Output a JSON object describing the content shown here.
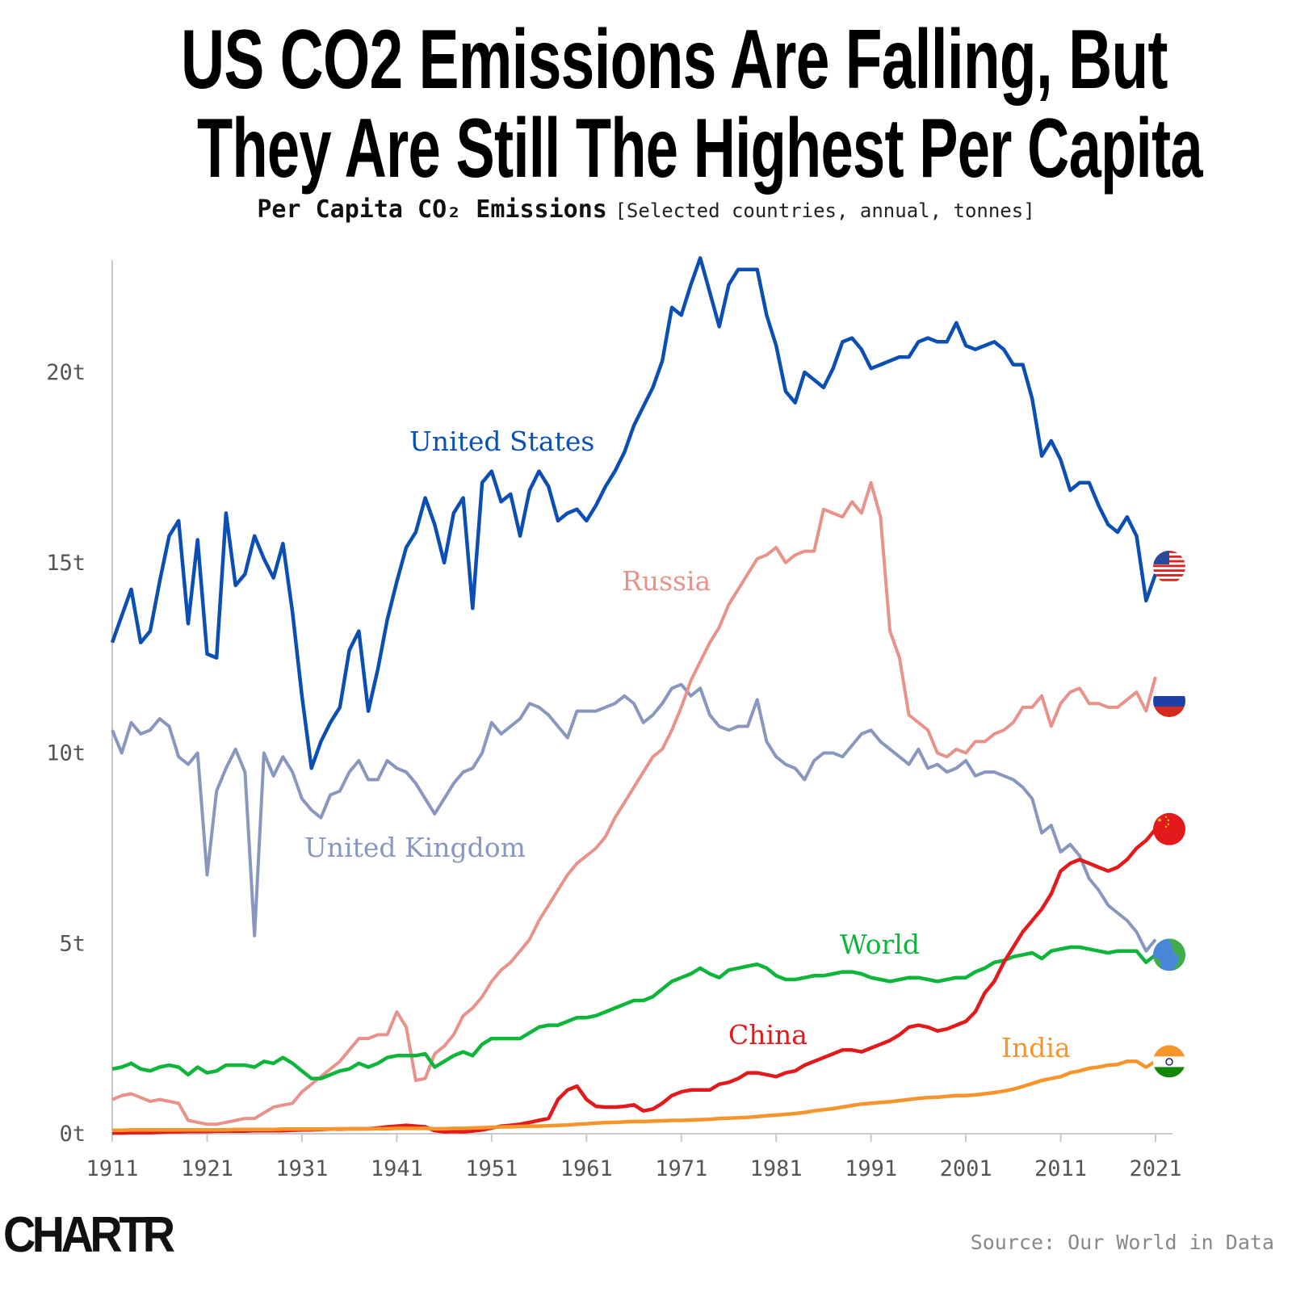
{
  "title_lines": [
    "US CO2 Emissions Are Falling, But",
    "They Are Still The Highest Per Capita"
  ],
  "subtitle": {
    "bold": "Per Capita CO₂ Emissions",
    "note": "[Selected countries, annual, tonnes]"
  },
  "logo": "CHARTR",
  "source": "Source: Our World in Data",
  "chart_data": {
    "type": "line",
    "title": "Per Capita CO₂ Emissions",
    "xlabel": "",
    "ylabel": "",
    "x_start": 1911,
    "x_end": 2021,
    "xlim": [
      1911,
      2022
    ],
    "ylim": [
      0,
      23
    ],
    "x_ticks": [
      1911,
      1921,
      1931,
      1941,
      1951,
      1961,
      1971,
      1981,
      1991,
      2001,
      2011,
      2021
    ],
    "y_ticks": [
      0,
      5,
      10,
      15,
      20
    ],
    "y_tick_labels": [
      "0t",
      "5t",
      "10t",
      "15t",
      "20t"
    ],
    "grid": false,
    "legend": "inline labels and flag markers at line ends",
    "series": [
      {
        "name": "United States",
        "color": "#0b4fb5",
        "flag": "us-flag",
        "values": [
          12.9,
          13.6,
          14.3,
          12.9,
          13.2,
          14.5,
          15.7,
          16.1,
          13.4,
          15.6,
          12.6,
          12.5,
          16.3,
          14.4,
          14.7,
          15.7,
          15.1,
          14.6,
          15.5,
          13.7,
          11.5,
          9.6,
          10.3,
          10.8,
          11.2,
          12.7,
          13.2,
          11.1,
          12.2,
          13.5,
          14.5,
          15.4,
          15.8,
          16.7,
          16.0,
          15.0,
          16.3,
          16.7,
          13.8,
          17.1,
          17.4,
          16.6,
          16.8,
          15.7,
          16.9,
          17.4,
          17.0,
          16.1,
          16.3,
          16.4,
          16.1,
          16.5,
          17.0,
          17.4,
          17.9,
          18.6,
          19.1,
          19.6,
          20.3,
          21.7,
          21.5,
          22.3,
          23.0,
          22.1,
          21.2,
          22.3,
          22.7,
          22.7,
          22.7,
          21.5,
          20.7,
          19.5,
          19.2,
          20.0,
          19.8,
          19.6,
          20.1,
          20.8,
          20.9,
          20.6,
          20.1,
          20.2,
          20.3,
          20.4,
          20.4,
          20.8,
          20.9,
          20.8,
          20.8,
          21.3,
          20.7,
          20.6,
          20.7,
          20.8,
          20.6,
          20.2,
          20.2,
          19.3,
          17.8,
          18.2,
          17.7,
          16.9,
          17.1,
          17.1,
          16.5,
          16.0,
          15.8,
          16.2,
          15.7,
          14.0,
          14.7
        ]
      },
      {
        "name": "Russia",
        "color": "#e8928a",
        "flag": "russia-flag",
        "values": [
          0.9,
          1.0,
          1.05,
          0.95,
          0.85,
          0.9,
          0.85,
          0.8,
          0.35,
          0.3,
          0.25,
          0.25,
          0.3,
          0.35,
          0.4,
          0.4,
          0.55,
          0.7,
          0.75,
          0.8,
          1.1,
          1.3,
          1.5,
          1.7,
          1.9,
          2.2,
          2.5,
          2.5,
          2.6,
          2.6,
          3.2,
          2.8,
          1.4,
          1.45,
          2.1,
          2.3,
          2.6,
          3.1,
          3.3,
          3.6,
          4.0,
          4.3,
          4.5,
          4.8,
          5.1,
          5.6,
          6.0,
          6.4,
          6.8,
          7.1,
          7.3,
          7.5,
          7.8,
          8.3,
          8.7,
          9.1,
          9.5,
          9.9,
          10.1,
          10.6,
          11.2,
          11.9,
          12.4,
          12.9,
          13.3,
          13.9,
          14.3,
          14.7,
          15.1,
          15.2,
          15.4,
          15.0,
          15.2,
          15.3,
          15.3,
          16.4,
          16.3,
          16.2,
          16.6,
          16.3,
          17.1,
          16.2,
          13.2,
          12.5,
          11.0,
          10.8,
          10.6,
          10.0,
          9.9,
          10.1,
          10.0,
          10.3,
          10.3,
          10.5,
          10.6,
          10.8,
          11.2,
          11.2,
          11.5,
          10.7,
          11.3,
          11.6,
          11.7,
          11.3,
          11.3,
          11.2,
          11.2,
          11.4,
          11.6,
          11.1,
          12.0
        ]
      },
      {
        "name": "United Kingdom",
        "color": "#8797c0",
        "flag": null,
        "values": [
          10.6,
          10.0,
          10.8,
          10.5,
          10.6,
          10.9,
          10.7,
          9.9,
          9.7,
          10.0,
          6.8,
          9.0,
          9.6,
          10.1,
          9.5,
          5.2,
          10.0,
          9.4,
          9.9,
          9.5,
          8.8,
          8.5,
          8.3,
          8.9,
          9.0,
          9.5,
          9.8,
          9.3,
          9.3,
          9.8,
          9.6,
          9.5,
          9.2,
          8.8,
          8.4,
          8.8,
          9.2,
          9.5,
          9.6,
          10.0,
          10.8,
          10.5,
          10.7,
          10.9,
          11.3,
          11.2,
          11.0,
          10.7,
          10.4,
          11.1,
          11.1,
          11.1,
          11.2,
          11.3,
          11.5,
          11.3,
          10.8,
          11.0,
          11.3,
          11.7,
          11.8,
          11.5,
          11.7,
          11.0,
          10.7,
          10.6,
          10.7,
          10.7,
          11.4,
          10.3,
          9.9,
          9.7,
          9.6,
          9.3,
          9.8,
          10.0,
          10.0,
          9.9,
          10.2,
          10.5,
          10.6,
          10.3,
          10.1,
          9.9,
          9.7,
          10.1,
          9.6,
          9.7,
          9.5,
          9.6,
          9.8,
          9.4,
          9.5,
          9.5,
          9.4,
          9.3,
          9.1,
          8.8,
          7.9,
          8.1,
          7.4,
          7.6,
          7.3,
          6.7,
          6.4,
          6.0,
          5.8,
          5.6,
          5.3,
          4.8,
          5.1
        ]
      },
      {
        "name": "World",
        "color": "#0db53a",
        "flag": "globe",
        "values": [
          1.7,
          1.75,
          1.85,
          1.7,
          1.65,
          1.75,
          1.8,
          1.75,
          1.55,
          1.75,
          1.6,
          1.65,
          1.8,
          1.8,
          1.8,
          1.75,
          1.9,
          1.85,
          2.0,
          1.85,
          1.65,
          1.45,
          1.45,
          1.55,
          1.65,
          1.7,
          1.85,
          1.75,
          1.85,
          2.0,
          2.05,
          2.05,
          2.05,
          2.1,
          1.75,
          1.9,
          2.05,
          2.15,
          2.05,
          2.35,
          2.5,
          2.5,
          2.5,
          2.5,
          2.65,
          2.8,
          2.85,
          2.85,
          2.95,
          3.05,
          3.05,
          3.1,
          3.2,
          3.3,
          3.4,
          3.5,
          3.5,
          3.6,
          3.8,
          4.0,
          4.1,
          4.2,
          4.35,
          4.2,
          4.1,
          4.3,
          4.35,
          4.4,
          4.45,
          4.35,
          4.15,
          4.05,
          4.05,
          4.1,
          4.15,
          4.15,
          4.2,
          4.25,
          4.25,
          4.2,
          4.1,
          4.05,
          4.0,
          4.05,
          4.1,
          4.1,
          4.05,
          4.0,
          4.05,
          4.1,
          4.1,
          4.25,
          4.35,
          4.5,
          4.55,
          4.65,
          4.7,
          4.75,
          4.6,
          4.8,
          4.85,
          4.9,
          4.9,
          4.85,
          4.8,
          4.75,
          4.8,
          4.8,
          4.8,
          4.5,
          4.7
        ]
      },
      {
        "name": "China",
        "color": "#e3191b",
        "flag": "china-flag",
        "values": [
          0.02,
          0.02,
          0.03,
          0.03,
          0.03,
          0.04,
          0.05,
          0.05,
          0.06,
          0.06,
          0.06,
          0.07,
          0.07,
          0.07,
          0.07,
          0.08,
          0.08,
          0.08,
          0.08,
          0.09,
          0.1,
          0.1,
          0.11,
          0.12,
          0.12,
          0.13,
          0.13,
          0.13,
          0.15,
          0.18,
          0.2,
          0.22,
          0.2,
          0.18,
          0.08,
          0.05,
          0.06,
          0.05,
          0.07,
          0.1,
          0.15,
          0.2,
          0.22,
          0.25,
          0.3,
          0.35,
          0.4,
          0.9,
          1.15,
          1.25,
          0.9,
          0.72,
          0.7,
          0.7,
          0.72,
          0.76,
          0.6,
          0.65,
          0.8,
          1.0,
          1.1,
          1.15,
          1.15,
          1.15,
          1.3,
          1.35,
          1.45,
          1.6,
          1.6,
          1.55,
          1.5,
          1.6,
          1.65,
          1.8,
          1.9,
          2.0,
          2.1,
          2.2,
          2.2,
          2.15,
          2.25,
          2.35,
          2.45,
          2.6,
          2.8,
          2.85,
          2.8,
          2.7,
          2.75,
          2.85,
          2.95,
          3.2,
          3.7,
          4.0,
          4.5,
          4.9,
          5.3,
          5.6,
          5.9,
          6.3,
          6.9,
          7.1,
          7.2,
          7.1,
          7.0,
          6.9,
          7.0,
          7.2,
          7.5,
          7.7,
          8.0
        ]
      },
      {
        "name": "India",
        "color": "#f7952d",
        "flag": "india-flag",
        "values": [
          0.09,
          0.09,
          0.1,
          0.1,
          0.1,
          0.1,
          0.1,
          0.1,
          0.1,
          0.1,
          0.1,
          0.1,
          0.1,
          0.11,
          0.11,
          0.11,
          0.11,
          0.11,
          0.12,
          0.12,
          0.12,
          0.12,
          0.12,
          0.12,
          0.13,
          0.13,
          0.13,
          0.13,
          0.13,
          0.13,
          0.14,
          0.14,
          0.14,
          0.14,
          0.13,
          0.13,
          0.14,
          0.14,
          0.15,
          0.16,
          0.17,
          0.18,
          0.18,
          0.19,
          0.2,
          0.2,
          0.21,
          0.22,
          0.23,
          0.25,
          0.26,
          0.28,
          0.29,
          0.3,
          0.31,
          0.32,
          0.32,
          0.33,
          0.34,
          0.35,
          0.35,
          0.36,
          0.37,
          0.38,
          0.4,
          0.41,
          0.42,
          0.43,
          0.45,
          0.47,
          0.49,
          0.51,
          0.53,
          0.56,
          0.6,
          0.63,
          0.66,
          0.7,
          0.74,
          0.78,
          0.8,
          0.82,
          0.84,
          0.87,
          0.9,
          0.93,
          0.95,
          0.96,
          0.98,
          1.0,
          1.0,
          1.02,
          1.05,
          1.08,
          1.12,
          1.17,
          1.24,
          1.32,
          1.4,
          1.45,
          1.5,
          1.6,
          1.65,
          1.72,
          1.75,
          1.8,
          1.82,
          1.9,
          1.9,
          1.75,
          1.9
        ]
      }
    ]
  }
}
